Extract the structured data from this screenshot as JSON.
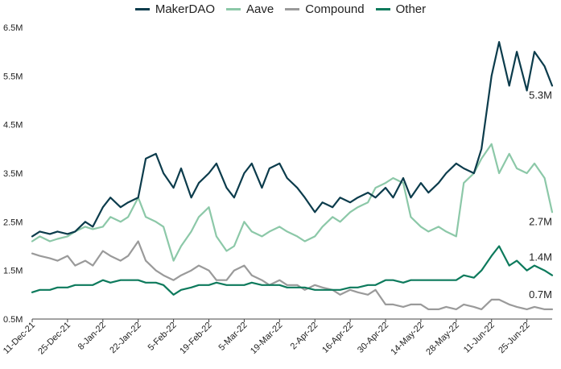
{
  "chart_data": {
    "type": "line",
    "title": "",
    "xlabel": "",
    "ylabel": "",
    "ylim": [
      0.5,
      6.5
    ],
    "grid": false,
    "legend_position": "top-center",
    "y_ticks": [
      "0.5M",
      "1.5M",
      "2.5M",
      "3.5M",
      "4.5M",
      "5.5M",
      "6.5M"
    ],
    "x_ticks": [
      "11-Dec-21",
      "25-Dec-21",
      "8-Jan-22",
      "22-Jan-22",
      "5-Feb-22",
      "19-Feb-22",
      "5-Mar-22",
      "19-Mar-22",
      "2-Apr-22",
      "16-Apr-22",
      "30-Apr-22",
      "14-May-22",
      "28-May-22",
      "11-Jun-22",
      "25-Jun-22"
    ],
    "x": [
      "2021-12-11",
      "2021-12-14",
      "2021-12-18",
      "2021-12-21",
      "2021-12-25",
      "2021-12-28",
      "2022-01-01",
      "2022-01-04",
      "2022-01-08",
      "2022-01-11",
      "2022-01-15",
      "2022-01-18",
      "2022-01-22",
      "2022-01-25",
      "2022-01-29",
      "2022-02-01",
      "2022-02-05",
      "2022-02-08",
      "2022-02-12",
      "2022-02-15",
      "2022-02-19",
      "2022-02-22",
      "2022-02-26",
      "2022-03-01",
      "2022-03-05",
      "2022-03-08",
      "2022-03-12",
      "2022-03-15",
      "2022-03-19",
      "2022-03-22",
      "2022-03-26",
      "2022-03-29",
      "2022-04-02",
      "2022-04-05",
      "2022-04-09",
      "2022-04-12",
      "2022-04-16",
      "2022-04-19",
      "2022-04-23",
      "2022-04-26",
      "2022-04-30",
      "2022-05-03",
      "2022-05-07",
      "2022-05-10",
      "2022-05-14",
      "2022-05-17",
      "2022-05-21",
      "2022-05-24",
      "2022-05-28",
      "2022-05-31",
      "2022-06-04",
      "2022-06-07",
      "2022-06-11",
      "2022-06-14",
      "2022-06-18",
      "2022-06-21",
      "2022-06-25",
      "2022-06-28",
      "2022-07-02",
      "2022-07-05"
    ],
    "series": [
      {
        "name": "MakerDAO",
        "color": "#0c3c4c",
        "end_label": "5.3M",
        "values": [
          2.2,
          2.3,
          2.25,
          2.3,
          2.25,
          2.3,
          2.5,
          2.4,
          2.8,
          3.0,
          2.8,
          2.9,
          3.0,
          3.8,
          3.9,
          3.5,
          3.2,
          3.6,
          3.0,
          3.3,
          3.5,
          3.7,
          3.2,
          3.0,
          3.5,
          3.7,
          3.2,
          3.6,
          3.7,
          3.4,
          3.2,
          3.0,
          2.7,
          2.9,
          2.8,
          3.0,
          2.9,
          3.0,
          3.1,
          3.0,
          3.2,
          3.0,
          3.4,
          3.0,
          3.3,
          3.1,
          3.3,
          3.5,
          3.7,
          3.6,
          3.5,
          4.0,
          5.5,
          6.2,
          5.3,
          6.0,
          5.2,
          6.0,
          5.7,
          5.3
        ]
      },
      {
        "name": "Aave",
        "color": "#8cc8a8",
        "end_label": "2.7M",
        "values": [
          2.1,
          2.2,
          2.1,
          2.15,
          2.2,
          2.3,
          2.4,
          2.35,
          2.4,
          2.6,
          2.5,
          2.6,
          3.0,
          2.6,
          2.5,
          2.4,
          1.7,
          2.0,
          2.3,
          2.6,
          2.8,
          2.2,
          1.9,
          2.0,
          2.5,
          2.3,
          2.2,
          2.3,
          2.4,
          2.3,
          2.2,
          2.1,
          2.2,
          2.4,
          2.6,
          2.5,
          2.7,
          2.8,
          2.9,
          3.2,
          3.3,
          3.4,
          3.3,
          2.6,
          2.4,
          2.3,
          2.4,
          2.3,
          2.2,
          3.3,
          3.5,
          3.8,
          4.1,
          3.5,
          3.9,
          3.6,
          3.5,
          3.7,
          3.4,
          2.7
        ]
      },
      {
        "name": "Compound",
        "color": "#9a9a9a",
        "end_label": "0.7M",
        "values": [
          1.85,
          1.8,
          1.75,
          1.7,
          1.8,
          1.6,
          1.7,
          1.6,
          1.9,
          1.8,
          1.7,
          1.8,
          2.1,
          1.7,
          1.5,
          1.4,
          1.3,
          1.4,
          1.5,
          1.6,
          1.5,
          1.3,
          1.3,
          1.5,
          1.6,
          1.4,
          1.3,
          1.2,
          1.3,
          1.2,
          1.2,
          1.1,
          1.2,
          1.15,
          1.1,
          1.0,
          1.1,
          1.05,
          1.0,
          1.1,
          0.8,
          0.8,
          0.75,
          0.8,
          0.8,
          0.7,
          0.7,
          0.75,
          0.7,
          0.8,
          0.75,
          0.7,
          0.9,
          0.9,
          0.8,
          0.75,
          0.7,
          0.75,
          0.7,
          0.7
        ]
      },
      {
        "name": "Other",
        "color": "#0d7a5c",
        "end_label": "1.4M",
        "values": [
          1.05,
          1.1,
          1.1,
          1.15,
          1.15,
          1.2,
          1.2,
          1.2,
          1.3,
          1.25,
          1.3,
          1.3,
          1.3,
          1.25,
          1.25,
          1.2,
          1.0,
          1.1,
          1.15,
          1.2,
          1.2,
          1.25,
          1.2,
          1.2,
          1.2,
          1.25,
          1.2,
          1.2,
          1.2,
          1.15,
          1.15,
          1.15,
          1.1,
          1.1,
          1.1,
          1.1,
          1.15,
          1.15,
          1.2,
          1.2,
          1.3,
          1.3,
          1.25,
          1.3,
          1.3,
          1.3,
          1.3,
          1.3,
          1.3,
          1.4,
          1.35,
          1.5,
          1.8,
          2.0,
          1.6,
          1.7,
          1.5,
          1.6,
          1.5,
          1.4
        ]
      }
    ]
  }
}
